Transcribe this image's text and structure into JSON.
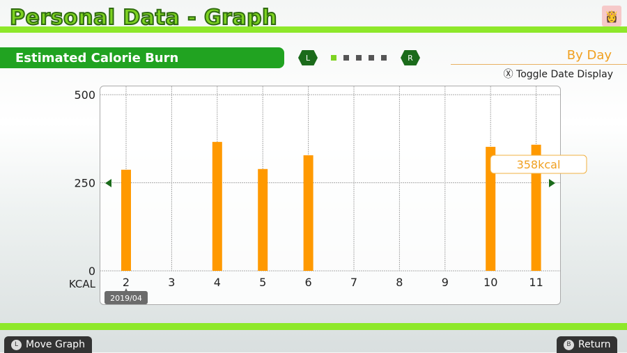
{
  "header": {
    "title": "Personal Data  - Graph",
    "avatar": "peach-avatar"
  },
  "section": {
    "title": "Estimated Calorie Burn",
    "left_button": "L",
    "right_button": "R",
    "page_count": 5,
    "current_page": 1
  },
  "mode": {
    "label": "By Day",
    "toggle_button": "Ⓧ",
    "toggle_label": "Toggle Date Display"
  },
  "chart_data": {
    "type": "bar",
    "ylabel": "KCAL",
    "ylim": [
      0,
      500
    ],
    "yticks": [
      "0",
      "250",
      "500"
    ],
    "categories": [
      "2",
      "3",
      "4",
      "5",
      "6",
      "7",
      "8",
      "9",
      "10",
      "11"
    ],
    "values": [
      287,
      0,
      366,
      289,
      328,
      0,
      0,
      0,
      352,
      358
    ],
    "bar_color": "#ff9900",
    "month_label": "2019/04",
    "selected_index": 9,
    "tooltip": "358kcal",
    "grid": true
  },
  "footer": {
    "move_icon": "L",
    "move_label": "Move Graph",
    "return_icon": "B",
    "return_label": "Return"
  },
  "colors": {
    "accent": "#8ee82a",
    "banner": "#21a321",
    "orange": "#ff9900"
  }
}
